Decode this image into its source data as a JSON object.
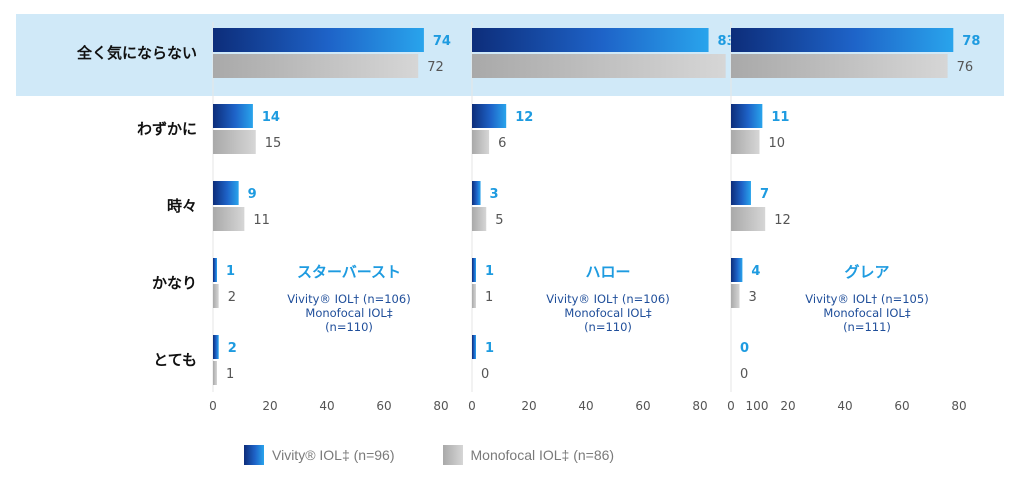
{
  "chart_data": {
    "type": "bar",
    "orientation": "horizontal",
    "categories": [
      "全く気にならない",
      "わずかに",
      "時々",
      "かなり",
      "とても"
    ],
    "highlight_category": "全く気にならない",
    "highlight_color": "#d0e9f8",
    "colors": {
      "vivity": "#1e63c8",
      "vivity_label": "#1e9be0",
      "monofocal": "#c8c8c8",
      "monofocal_label": "#555555"
    },
    "panels": [
      {
        "title": "スターバースト",
        "subtitle_lines": [
          "Vivity® IOL† (n=106)",
          "Monofocal IOL‡",
          "(n=110)"
        ],
        "xlim": [
          0,
          80
        ],
        "xticks": [
          "0",
          "20",
          "40",
          "60",
          "80"
        ],
        "series": [
          {
            "key": "vivity",
            "values": [
              74,
              14,
              9,
              1,
              2
            ]
          },
          {
            "key": "monofocal",
            "values": [
              72,
              15,
              11,
              2,
              1
            ]
          }
        ]
      },
      {
        "title": "ハロー",
        "subtitle_lines": [
          "Vivity® IOL† (n=106)",
          "Monofocal IOL‡",
          "(n=110)"
        ],
        "xlim": [
          0,
          100
        ],
        "xticks": [
          "0",
          "20",
          "40",
          "60",
          "80",
          "100"
        ],
        "series": [
          {
            "key": "vivity",
            "values": [
              83,
              12,
              3,
              1,
              1
            ]
          },
          {
            "key": "monofocal",
            "values": [
              89,
              6,
              5,
              1,
              0
            ]
          }
        ]
      },
      {
        "title": "グレア",
        "subtitle_lines": [
          "Vivity® IOL† (n=105)",
          "Monofocal IOL‡",
          "(n=111)"
        ],
        "xlim": [
          0,
          80
        ],
        "xticks": [
          "0",
          "20",
          "40",
          "60",
          "80"
        ],
        "series": [
          {
            "key": "vivity",
            "values": [
              78,
              11,
              7,
              4,
              0
            ]
          },
          {
            "key": "monofocal",
            "values": [
              76,
              10,
              12,
              3,
              0
            ]
          }
        ]
      }
    ],
    "legend": [
      {
        "key": "vivity",
        "label": "Vivity® IOL‡ (n=96)"
      },
      {
        "key": "monofocal",
        "label": "Monofocal IOL‡ (n=86)"
      }
    ],
    "legend_position": "bottom"
  }
}
